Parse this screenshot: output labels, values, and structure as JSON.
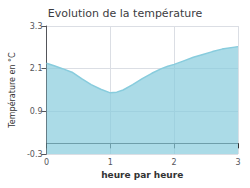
{
  "chart_data": {
    "type": "area",
    "title": "Evolution de la température",
    "xlabel": "heure par heure",
    "ylabel": "Température en °C",
    "x": [
      0,
      0.12,
      0.25,
      0.4,
      0.55,
      0.7,
      0.85,
      1.0,
      1.1,
      1.2,
      1.35,
      1.5,
      1.65,
      1.8,
      1.9,
      2.0,
      2.15,
      2.3,
      2.45,
      2.6,
      2.75,
      3.0
    ],
    "values": [
      2.25,
      2.18,
      2.1,
      2.0,
      1.82,
      1.65,
      1.52,
      1.42,
      1.44,
      1.5,
      1.65,
      1.82,
      1.97,
      2.1,
      2.17,
      2.22,
      2.32,
      2.42,
      2.5,
      2.58,
      2.65,
      2.72
    ],
    "color": "#88ccdd",
    "xlim": [
      0,
      3
    ],
    "xticks": [
      0,
      1,
      2,
      3
    ],
    "ylim": [
      -0.3,
      3.3
    ],
    "yticks": [
      -0.3,
      0.9,
      2.1,
      3.3
    ],
    "grid": true
  }
}
